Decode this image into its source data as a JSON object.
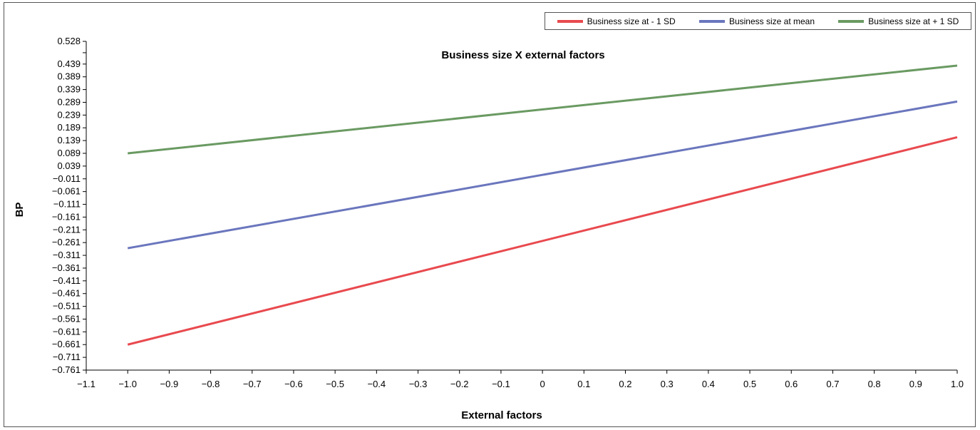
{
  "chart_data": {
    "type": "line",
    "title": "Business size X external factors",
    "xlabel": "External factors",
    "ylabel": "BP",
    "xlim": [
      -1.1,
      1.0
    ],
    "ylim": [
      -0.761,
      0.528
    ],
    "x_ticks": [
      "−1.1",
      "−0.9",
      "−0.8",
      "−0.7",
      "−0.6",
      "−0.5",
      "−0.4",
      "−0.3",
      "−0.2",
      "−0.1",
      "0",
      "0.1",
      "0.2",
      "0.3",
      "0.4",
      "0.5",
      "0.6",
      "0.7",
      "0.8",
      "0.9",
      "1.0"
    ],
    "x_tick_values": [
      -1.1,
      -0.9,
      -0.8,
      -0.7,
      -0.6,
      -0.5,
      -0.4,
      -0.3,
      -0.2,
      -0.1,
      0,
      0.1,
      0.2,
      0.3,
      0.4,
      0.5,
      0.6,
      0.7,
      0.8,
      0.9,
      1.0
    ],
    "x_tick_label_extra": "−1.0",
    "x_tick_label_extra_value": -1.0,
    "y_ticks": [
      "0.528",
      "0.439",
      "0.389",
      "0.339",
      "0.289",
      "0.239",
      "0.189",
      "0.139",
      "0.089",
      "0.039",
      "−0.011",
      "−0.061",
      "−0.111",
      "−0.161",
      "−0.211",
      "−0.261",
      "−0.311",
      "−0.361",
      "−0.411",
      "−0.461",
      "−0.511",
      "−0.561",
      "−0.611",
      "−0.661",
      "−0.711",
      "−0.761"
    ],
    "y_tick_values": [
      0.528,
      0.439,
      0.389,
      0.339,
      0.289,
      0.239,
      0.189,
      0.139,
      0.089,
      0.039,
      -0.011,
      -0.061,
      -0.111,
      -0.161,
      -0.211,
      -0.261,
      -0.311,
      -0.361,
      -0.411,
      -0.461,
      -0.511,
      -0.561,
      -0.611,
      -0.661,
      -0.711,
      -0.761
    ],
    "grid": false,
    "legend_position": "top-right",
    "series": [
      {
        "name": "Business size at - 1 SD",
        "color": "#e84a4f",
        "x": [
          -1.0,
          1.0
        ],
        "y": [
          -0.661,
          0.152
        ]
      },
      {
        "name": "Business size at mean",
        "color": "#6a76bd",
        "x": [
          -1.0,
          1.0
        ],
        "y": [
          -0.283,
          0.292
        ]
      },
      {
        "name": "Business size at + 1 SD",
        "color": "#6a9a62",
        "x": [
          -1.0,
          1.0
        ],
        "y": [
          0.089,
          0.433
        ]
      }
    ]
  }
}
